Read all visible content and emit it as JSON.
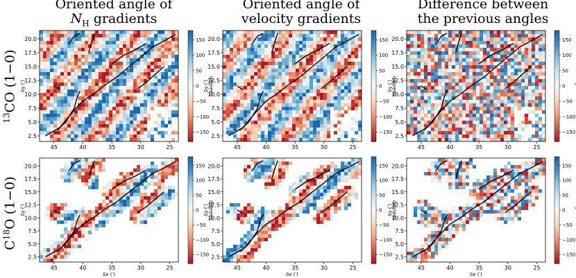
{
  "titles": {
    "col1_line1": "Oriented angle of",
    "col1_line2_sym": "N",
    "col1_line2_sub": "H",
    "col1_line2_rest": " gradients",
    "col2_line1": "Oriented angle of",
    "col2_line2": "velocity gradients",
    "col3_line1": "Difference between",
    "col3_line2": "the previous angles"
  },
  "rows": {
    "row1_sup": "13",
    "row1_text": "CO (1−0)",
    "row2_prefix": "C",
    "row2_sup": "18",
    "row2_text": "O (1−0)"
  },
  "colors": {
    "colormap": [
      "#b2182b",
      "#d6604d",
      "#f4a582",
      "#fddbc7",
      "#f7f7f7",
      "#d1e5f0",
      "#92c5de",
      "#4393c3",
      "#2166ac"
    ],
    "filament": "#000000"
  },
  "chart_data": [
    {
      "type": "heatmap",
      "panel": "13CO N_H gradient angle",
      "xlabel": "",
      "ylabel": "δy (′)",
      "colorbar_label": "degrees",
      "clim": [
        -180,
        180
      ],
      "colorbar_ticks": [
        "150",
        "100",
        "50",
        "0",
        "−50",
        "−100",
        "−150"
      ],
      "x_ticks": [
        "45",
        "40",
        "35",
        "30",
        "25"
      ],
      "y_ticks": [
        "20.0",
        "17.5",
        "15.0",
        "12.5",
        "10.0",
        "7.5",
        "5.0",
        "2.5"
      ]
    },
    {
      "type": "heatmap",
      "panel": "13CO velocity gradient angle",
      "xlabel": "",
      "ylabel": "δy (′)",
      "colorbar_label": "degrees",
      "clim": [
        -180,
        180
      ],
      "colorbar_ticks": [
        "150",
        "100",
        "50",
        "0",
        "−50",
        "−100",
        "−150"
      ],
      "x_ticks": [
        "45",
        "40",
        "35",
        "30",
        "25"
      ],
      "y_ticks": [
        "20.0",
        "17.5",
        "15.0",
        "12.5",
        "10.0",
        "7.5",
        "5.0",
        "2.5"
      ]
    },
    {
      "type": "heatmap",
      "panel": "13CO angle difference",
      "xlabel": "",
      "ylabel": "δy (′)",
      "colorbar_label": "degrees",
      "clim": [
        -180,
        180
      ],
      "colorbar_ticks": [
        "150",
        "100",
        "50",
        "0",
        "−50",
        "−100",
        "−150"
      ],
      "x_ticks": [
        "45",
        "40",
        "35",
        "30",
        "25"
      ],
      "y_ticks": [
        "20.0",
        "17.5",
        "15.0",
        "12.5",
        "10.0",
        "7.5",
        "5.0",
        "2.5"
      ]
    },
    {
      "type": "heatmap",
      "panel": "C18O N_H gradient angle",
      "xlabel": "δx (′)",
      "ylabel": "δy (′)",
      "colorbar_label": "degrees",
      "clim": [
        -180,
        180
      ],
      "colorbar_ticks": [
        "150",
        "100",
        "50",
        "0",
        "−50",
        "−100",
        "−150"
      ],
      "x_ticks": [
        "45",
        "40",
        "35",
        "30",
        "25"
      ],
      "y_ticks": [
        "20.0",
        "17.5",
        "15.0",
        "12.5",
        "10.0",
        "7.5",
        "5.0",
        "2.5"
      ]
    },
    {
      "type": "heatmap",
      "panel": "C18O velocity gradient angle",
      "xlabel": "δx (′)",
      "ylabel": "δy (′)",
      "colorbar_label": "degrees",
      "clim": [
        -180,
        180
      ],
      "colorbar_ticks": [
        "150",
        "100",
        "50",
        "0",
        "−50",
        "−100",
        "−150"
      ],
      "x_ticks": [
        "45",
        "40",
        "35",
        "30",
        "25"
      ],
      "y_ticks": [
        "20.0",
        "17.5",
        "15.0",
        "12.5",
        "10.0",
        "7.5",
        "5.0",
        "2.5"
      ]
    },
    {
      "type": "heatmap",
      "panel": "C18O angle difference",
      "xlabel": "δx (′)",
      "ylabel": "δy (′)",
      "colorbar_label": "degrees",
      "clim": [
        -180,
        180
      ],
      "colorbar_ticks": [
        "150",
        "100",
        "50",
        "0",
        "−50",
        "−100",
        "−150"
      ],
      "x_ticks": [
        "45",
        "40",
        "35",
        "30",
        "25"
      ],
      "y_ticks": [
        "20.0",
        "17.5",
        "15.0",
        "12.5",
        "10.0",
        "7.5",
        "5.0",
        "2.5"
      ]
    }
  ]
}
